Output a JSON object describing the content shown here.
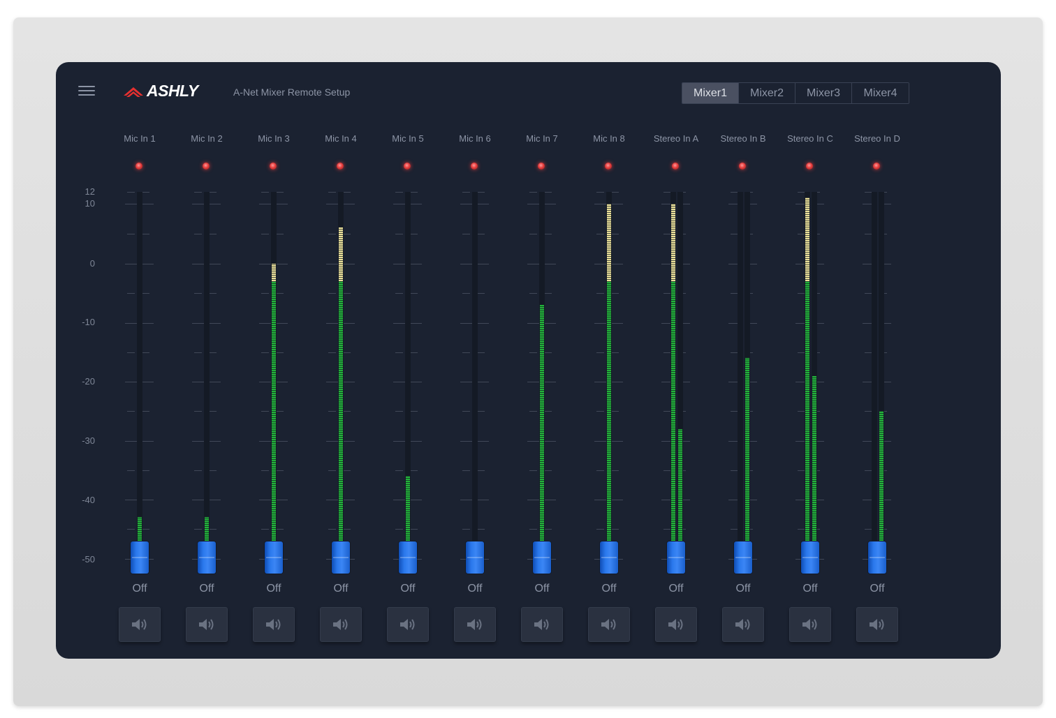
{
  "app": {
    "brand": "ASHLY",
    "subtitle": "A-Net Mixer Remote Setup"
  },
  "tabs": [
    {
      "label": "Mixer1",
      "active": true
    },
    {
      "label": "Mixer2",
      "active": false
    },
    {
      "label": "Mixer3",
      "active": false
    },
    {
      "label": "Mixer4",
      "active": false
    }
  ],
  "scale": [
    "12",
    "10",
    "0",
    "-10",
    "-20",
    "-30",
    "-40",
    "-50"
  ],
  "channels": [
    {
      "name": "Mic In 1",
      "value": "Off",
      "meter_db": [
        -43
      ]
    },
    {
      "name": "Mic In 2",
      "value": "Off",
      "meter_db": [
        -43
      ]
    },
    {
      "name": "Mic In 3",
      "value": "Off",
      "meter_db": [
        0
      ]
    },
    {
      "name": "Mic In 4",
      "value": "Off",
      "meter_db": [
        6
      ]
    },
    {
      "name": "Mic In 5",
      "value": "Off",
      "meter_db": [
        -36
      ]
    },
    {
      "name": "Mic In 6",
      "value": "Off",
      "meter_db": [
        -48
      ]
    },
    {
      "name": "Mic In 7",
      "value": "Off",
      "meter_db": [
        -7
      ]
    },
    {
      "name": "Mic In 8",
      "value": "Off",
      "meter_db": [
        10
      ]
    },
    {
      "name": "Stereo In A",
      "value": "Off",
      "meter_db": [
        10,
        -28
      ]
    },
    {
      "name": "Stereo In B",
      "value": "Off",
      "meter_db": [
        -48,
        -16
      ]
    },
    {
      "name": "Stereo In C",
      "value": "Off",
      "meter_db": [
        11,
        -19
      ]
    },
    {
      "name": "Stereo In D",
      "value": "Off",
      "meter_db": [
        -48,
        -25
      ]
    }
  ],
  "colors": {
    "background": "#1b2231",
    "meter_green": "#22b43a",
    "meter_yellow": "#ece29a",
    "fader_blue": "#2a78ec",
    "clip_red": "#e53b3b"
  },
  "icons": {
    "menu": "hamburger-icon",
    "mute": "speaker-icon",
    "clip": "clip-led-icon"
  }
}
